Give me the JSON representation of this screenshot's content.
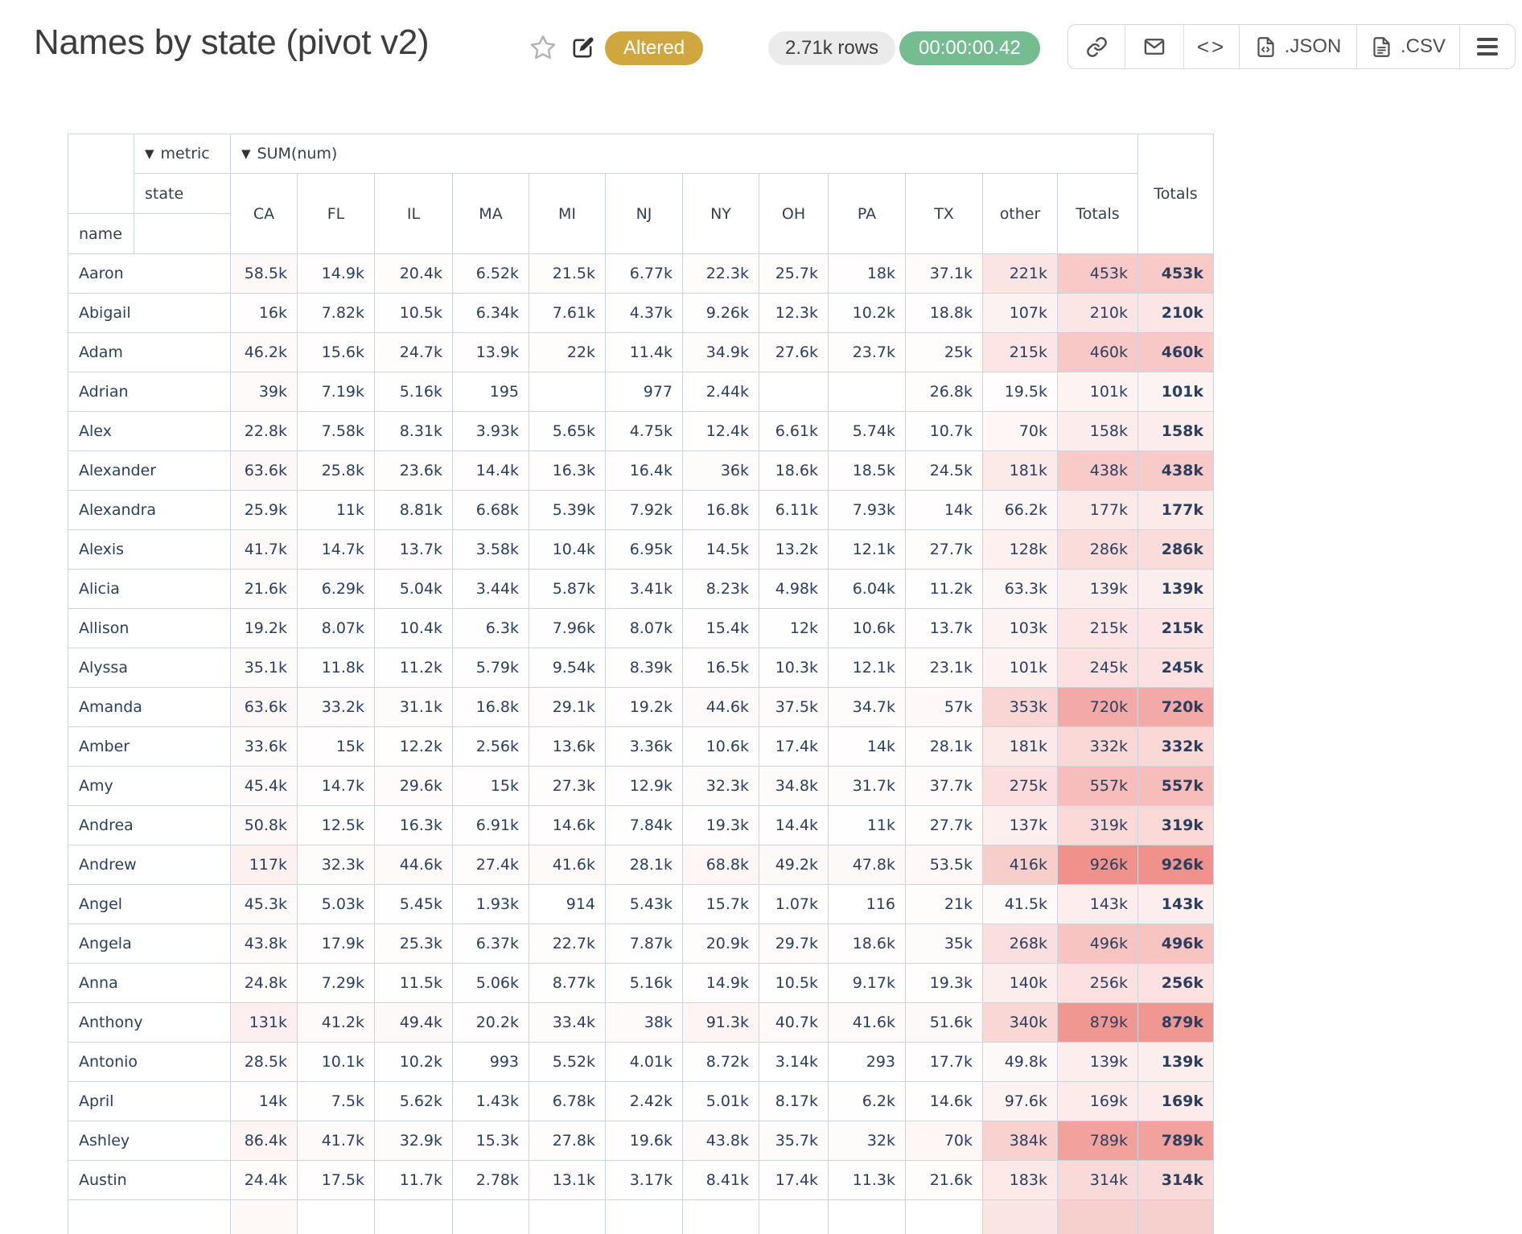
{
  "header": {
    "title": "Names by state (pivot v2)",
    "altered_badge": "Altered",
    "rows_badge": "2.71k rows",
    "timer_badge": "00:00:00.42",
    "toolbar": {
      "json_label": ".JSON",
      "csv_label": ".CSV"
    }
  },
  "colors": {
    "altered_badge_bg": "#d0a73f",
    "rows_badge_bg": "#ebebeb",
    "timer_badge_bg": "#75bc90",
    "table_border": "#ccd4df",
    "table_text": "#2a3f5f",
    "heatmap_low": "#ffffff",
    "heatmap_high": "#f0918c"
  },
  "pivot": {
    "metric_label": "metric",
    "metric_value": "SUM(num)",
    "state_label": "state",
    "name_label": "name",
    "grand_totals_label": "Totals",
    "columns": [
      "CA",
      "FL",
      "IL",
      "MA",
      "MI",
      "NJ",
      "NY",
      "OH",
      "PA",
      "TX",
      "other",
      "Totals"
    ],
    "partial_next_row_visible": true,
    "rows": [
      {
        "name": "Aaron",
        "values": [
          "58.5k",
          "14.9k",
          "20.4k",
          "6.52k",
          "21.5k",
          "6.77k",
          "22.3k",
          "25.7k",
          "18k",
          "37.1k",
          "221k",
          "453k"
        ],
        "total": "453k"
      },
      {
        "name": "Abigail",
        "values": [
          "16k",
          "7.82k",
          "10.5k",
          "6.34k",
          "7.61k",
          "4.37k",
          "9.26k",
          "12.3k",
          "10.2k",
          "18.8k",
          "107k",
          "210k"
        ],
        "total": "210k"
      },
      {
        "name": "Adam",
        "values": [
          "46.2k",
          "15.6k",
          "24.7k",
          "13.9k",
          "22k",
          "11.4k",
          "34.9k",
          "27.6k",
          "23.7k",
          "25k",
          "215k",
          "460k"
        ],
        "total": "460k"
      },
      {
        "name": "Adrian",
        "values": [
          "39k",
          "7.19k",
          "5.16k",
          "195",
          "",
          "977",
          "2.44k",
          "",
          "",
          "26.8k",
          "19.5k",
          "101k"
        ],
        "total": "101k"
      },
      {
        "name": "Alex",
        "values": [
          "22.8k",
          "7.58k",
          "8.31k",
          "3.93k",
          "5.65k",
          "4.75k",
          "12.4k",
          "6.61k",
          "5.74k",
          "10.7k",
          "70k",
          "158k"
        ],
        "total": "158k"
      },
      {
        "name": "Alexander",
        "values": [
          "63.6k",
          "25.8k",
          "23.6k",
          "14.4k",
          "16.3k",
          "16.4k",
          "36k",
          "18.6k",
          "18.5k",
          "24.5k",
          "181k",
          "438k"
        ],
        "total": "438k"
      },
      {
        "name": "Alexandra",
        "values": [
          "25.9k",
          "11k",
          "8.81k",
          "6.68k",
          "5.39k",
          "7.92k",
          "16.8k",
          "6.11k",
          "7.93k",
          "14k",
          "66.2k",
          "177k"
        ],
        "total": "177k"
      },
      {
        "name": "Alexis",
        "values": [
          "41.7k",
          "14.7k",
          "13.7k",
          "3.58k",
          "10.4k",
          "6.95k",
          "14.5k",
          "13.2k",
          "12.1k",
          "27.7k",
          "128k",
          "286k"
        ],
        "total": "286k"
      },
      {
        "name": "Alicia",
        "values": [
          "21.6k",
          "6.29k",
          "5.04k",
          "3.44k",
          "5.87k",
          "3.41k",
          "8.23k",
          "4.98k",
          "6.04k",
          "11.2k",
          "63.3k",
          "139k"
        ],
        "total": "139k"
      },
      {
        "name": "Allison",
        "values": [
          "19.2k",
          "8.07k",
          "10.4k",
          "6.3k",
          "7.96k",
          "8.07k",
          "15.4k",
          "12k",
          "10.6k",
          "13.7k",
          "103k",
          "215k"
        ],
        "total": "215k"
      },
      {
        "name": "Alyssa",
        "values": [
          "35.1k",
          "11.8k",
          "11.2k",
          "5.79k",
          "9.54k",
          "8.39k",
          "16.5k",
          "10.3k",
          "12.1k",
          "23.1k",
          "101k",
          "245k"
        ],
        "total": "245k"
      },
      {
        "name": "Amanda",
        "values": [
          "63.6k",
          "33.2k",
          "31.1k",
          "16.8k",
          "29.1k",
          "19.2k",
          "44.6k",
          "37.5k",
          "34.7k",
          "57k",
          "353k",
          "720k"
        ],
        "total": "720k"
      },
      {
        "name": "Amber",
        "values": [
          "33.6k",
          "15k",
          "12.2k",
          "2.56k",
          "13.6k",
          "3.36k",
          "10.6k",
          "17.4k",
          "14k",
          "28.1k",
          "181k",
          "332k"
        ],
        "total": "332k"
      },
      {
        "name": "Amy",
        "values": [
          "45.4k",
          "14.7k",
          "29.6k",
          "15k",
          "27.3k",
          "12.9k",
          "32.3k",
          "34.8k",
          "31.7k",
          "37.7k",
          "275k",
          "557k"
        ],
        "total": "557k"
      },
      {
        "name": "Andrea",
        "values": [
          "50.8k",
          "12.5k",
          "16.3k",
          "6.91k",
          "14.6k",
          "7.84k",
          "19.3k",
          "14.4k",
          "11k",
          "27.7k",
          "137k",
          "319k"
        ],
        "total": "319k"
      },
      {
        "name": "Andrew",
        "values": [
          "117k",
          "32.3k",
          "44.6k",
          "27.4k",
          "41.6k",
          "28.1k",
          "68.8k",
          "49.2k",
          "47.8k",
          "53.5k",
          "416k",
          "926k"
        ],
        "total": "926k"
      },
      {
        "name": "Angel",
        "values": [
          "45.3k",
          "5.03k",
          "5.45k",
          "1.93k",
          "914",
          "5.43k",
          "15.7k",
          "1.07k",
          "116",
          "21k",
          "41.5k",
          "143k"
        ],
        "total": "143k"
      },
      {
        "name": "Angela",
        "values": [
          "43.8k",
          "17.9k",
          "25.3k",
          "6.37k",
          "22.7k",
          "7.87k",
          "20.9k",
          "29.7k",
          "18.6k",
          "35k",
          "268k",
          "496k"
        ],
        "total": "496k"
      },
      {
        "name": "Anna",
        "values": [
          "24.8k",
          "7.29k",
          "11.5k",
          "5.06k",
          "8.77k",
          "5.16k",
          "14.9k",
          "10.5k",
          "9.17k",
          "19.3k",
          "140k",
          "256k"
        ],
        "total": "256k"
      },
      {
        "name": "Anthony",
        "values": [
          "131k",
          "41.2k",
          "49.4k",
          "20.2k",
          "33.4k",
          "38k",
          "91.3k",
          "40.7k",
          "41.6k",
          "51.6k",
          "340k",
          "879k"
        ],
        "total": "879k"
      },
      {
        "name": "Antonio",
        "values": [
          "28.5k",
          "10.1k",
          "10.2k",
          "993",
          "5.52k",
          "4.01k",
          "8.72k",
          "3.14k",
          "293",
          "17.7k",
          "49.8k",
          "139k"
        ],
        "total": "139k"
      },
      {
        "name": "April",
        "values": [
          "14k",
          "7.5k",
          "5.62k",
          "1.43k",
          "6.78k",
          "2.42k",
          "5.01k",
          "8.17k",
          "6.2k",
          "14.6k",
          "97.6k",
          "169k"
        ],
        "total": "169k"
      },
      {
        "name": "Ashley",
        "values": [
          "86.4k",
          "41.7k",
          "32.9k",
          "15.3k",
          "27.8k",
          "19.6k",
          "43.8k",
          "35.7k",
          "32k",
          "70k",
          "384k",
          "789k"
        ],
        "total": "789k"
      },
      {
        "name": "Austin",
        "values": [
          "24.4k",
          "17.5k",
          "11.7k",
          "2.78k",
          "13.1k",
          "3.17k",
          "8.41k",
          "17.4k",
          "11.3k",
          "21.6k",
          "183k",
          "314k"
        ],
        "total": "314k"
      }
    ]
  }
}
